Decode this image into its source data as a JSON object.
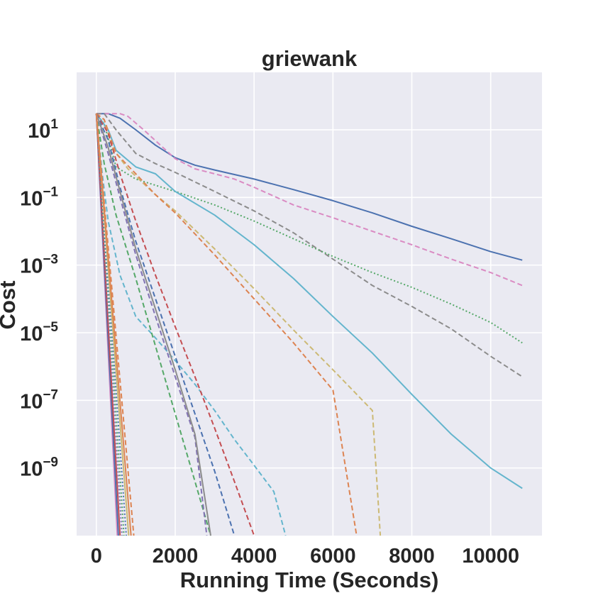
{
  "chart_data": {
    "type": "line",
    "title": "griewank",
    "xlabel": "Running Time (Seconds)",
    "ylabel": "Cost",
    "xlim": [
      -500,
      11300
    ],
    "ylim": [
      1e-11,
      500
    ],
    "yscale": "log",
    "xticks": [
      0,
      2000,
      4000,
      6000,
      8000,
      10000
    ],
    "yticks": [
      {
        "value": 10,
        "base": "10",
        "exp": "1"
      },
      {
        "value": 0.1,
        "base": "10",
        "exp": "−1"
      },
      {
        "value": 0.001,
        "base": "10",
        "exp": "−3"
      },
      {
        "value": 1e-05,
        "base": "10",
        "exp": "−5"
      },
      {
        "value": 1e-07,
        "base": "10",
        "exp": "−7"
      },
      {
        "value": 1e-09,
        "base": "10",
        "exp": "−9"
      }
    ],
    "grid": true,
    "background": "#eaeaf2",
    "series": [
      {
        "color": "#4c72b0",
        "style": "solid",
        "points": [
          [
            0,
            30
          ],
          [
            300,
            30
          ],
          [
            600,
            22
          ],
          [
            1000,
            10
          ],
          [
            1500,
            3.5
          ],
          [
            2000,
            1.5
          ],
          [
            2500,
            0.9
          ],
          [
            3000,
            0.65
          ],
          [
            4000,
            0.35
          ],
          [
            5000,
            0.17
          ],
          [
            6000,
            0.08
          ],
          [
            7000,
            0.035
          ],
          [
            8000,
            0.014
          ],
          [
            9000,
            0.006
          ],
          [
            10000,
            0.0025
          ],
          [
            10800,
            0.0014
          ]
        ]
      },
      {
        "color": "#da8bc3",
        "style": "dashed",
        "points": [
          [
            0,
            30
          ],
          [
            600,
            30
          ],
          [
            800,
            25
          ],
          [
            1200,
            10
          ],
          [
            2000,
            1.4
          ],
          [
            2500,
            0.7
          ],
          [
            3000,
            0.5
          ],
          [
            3500,
            0.35
          ],
          [
            4000,
            0.2
          ],
          [
            5000,
            0.06
          ],
          [
            6000,
            0.025
          ],
          [
            7000,
            0.01
          ],
          [
            8000,
            0.004
          ],
          [
            9000,
            0.0015
          ],
          [
            10000,
            0.0006
          ],
          [
            10800,
            0.00025
          ]
        ]
      },
      {
        "color": "#8c8c8c",
        "style": "dashed",
        "points": [
          [
            0,
            30
          ],
          [
            200,
            30
          ],
          [
            500,
            10
          ],
          [
            1000,
            2
          ],
          [
            1500,
            1
          ],
          [
            2000,
            0.55
          ],
          [
            3000,
            0.15
          ],
          [
            4000,
            0.04
          ],
          [
            5000,
            0.009
          ],
          [
            6000,
            0.0015
          ],
          [
            7000,
            0.00025
          ],
          [
            8000,
            6e-05
          ],
          [
            9000,
            1.3e-05
          ],
          [
            10000,
            2e-06
          ],
          [
            10800,
            5e-07
          ]
        ]
      },
      {
        "color": "#55a868",
        "style": "dotted",
        "points": [
          [
            0,
            30
          ],
          [
            200,
            15
          ],
          [
            500,
            0.8
          ],
          [
            1000,
            0.35
          ],
          [
            2000,
            0.15
          ],
          [
            3000,
            0.06
          ],
          [
            4000,
            0.02
          ],
          [
            5000,
            0.006
          ],
          [
            6000,
            0.0018
          ],
          [
            7000,
            0.0006
          ],
          [
            8000,
            0.00022
          ],
          [
            9000,
            7e-05
          ],
          [
            10000,
            2e-05
          ],
          [
            10800,
            5e-06
          ]
        ]
      },
      {
        "color": "#64b5cd",
        "style": "solid",
        "points": [
          [
            0,
            30
          ],
          [
            300,
            10
          ],
          [
            500,
            2.5
          ],
          [
            1000,
            0.8
          ],
          [
            1500,
            0.5
          ],
          [
            2000,
            0.15
          ],
          [
            3000,
            0.03
          ],
          [
            4000,
            0.004
          ],
          [
            5000,
            0.0004
          ],
          [
            6000,
            3e-05
          ],
          [
            7000,
            2.5e-06
          ],
          [
            8000,
            1.5e-07
          ],
          [
            9000,
            1e-08
          ],
          [
            10000,
            1e-09
          ],
          [
            10800,
            2.5e-10
          ]
        ]
      },
      {
        "color": "#ccb974",
        "style": "dashed",
        "points": [
          [
            0,
            30
          ],
          [
            200,
            20
          ],
          [
            400,
            3
          ],
          [
            800,
            0.7
          ],
          [
            1500,
            0.12
          ],
          [
            2000,
            0.04
          ],
          [
            3000,
            0.003
          ],
          [
            4000,
            0.0002
          ],
          [
            5000,
            1.2e-05
          ],
          [
            6000,
            8e-07
          ],
          [
            7000,
            5e-08
          ],
          [
            7200,
            1e-11
          ]
        ]
      },
      {
        "color": "#dd8452",
        "style": "dashed",
        "points": [
          [
            0,
            30
          ],
          [
            200,
            20
          ],
          [
            500,
            2
          ],
          [
            1000,
            0.5
          ],
          [
            1500,
            0.12
          ],
          [
            2000,
            0.035
          ],
          [
            3000,
            0.002
          ],
          [
            4000,
            0.0001
          ],
          [
            5000,
            5e-06
          ],
          [
            6000,
            2e-07
          ],
          [
            6600,
            1e-11
          ]
        ]
      },
      {
        "color": "#64b5cd",
        "style": "dashed",
        "points": [
          [
            0,
            30
          ],
          [
            150,
            0.5
          ],
          [
            300,
            0.02
          ],
          [
            600,
            0.0005
          ],
          [
            1000,
            3e-05
          ],
          [
            1500,
            7e-06
          ],
          [
            2000,
            1.5e-06
          ],
          [
            2500,
            3e-07
          ],
          [
            3000,
            5e-08
          ],
          [
            3500,
            7e-09
          ],
          [
            4000,
            1.2e-09
          ],
          [
            4500,
            2e-10
          ],
          [
            4800,
            1e-11
          ]
        ]
      },
      {
        "color": "#c44e52",
        "style": "dashed",
        "points": [
          [
            0,
            30
          ],
          [
            300,
            8
          ],
          [
            600,
            0.5
          ],
          [
            1000,
            0.02
          ],
          [
            1500,
            0.0005
          ],
          [
            2000,
            1.5e-05
          ],
          [
            2500,
            5e-07
          ],
          [
            3000,
            1.5e-08
          ],
          [
            3500,
            4e-10
          ],
          [
            4000,
            1e-11
          ]
        ]
      },
      {
        "color": "#4c72b0",
        "style": "dashed",
        "points": [
          [
            0,
            30
          ],
          [
            300,
            5
          ],
          [
            600,
            0.2
          ],
          [
            1000,
            0.005
          ],
          [
            1500,
            0.0001
          ],
          [
            2000,
            2e-06
          ],
          [
            2500,
            4e-08
          ],
          [
            3000,
            8e-10
          ],
          [
            3500,
            1e-11
          ]
        ]
      },
      {
        "color": "#55a868",
        "style": "dashed",
        "points": [
          [
            0,
            30
          ],
          [
            200,
            1
          ],
          [
            500,
            0.03
          ],
          [
            1000,
            0.0004
          ],
          [
            1500,
            4e-06
          ],
          [
            2000,
            4e-08
          ],
          [
            2500,
            4e-10
          ],
          [
            2900,
            1e-11
          ]
        ]
      },
      {
        "color": "#8172b3",
        "style": "dashed",
        "points": [
          [
            0,
            30
          ],
          [
            300,
            2
          ],
          [
            600,
            0.1
          ],
          [
            1000,
            0.002
          ],
          [
            1500,
            3e-05
          ],
          [
            2000,
            5e-07
          ],
          [
            2500,
            8e-09
          ],
          [
            2800,
            1e-11
          ]
        ]
      },
      {
        "color": "#8c8c8c",
        "style": "solid",
        "points": [
          [
            0,
            30
          ],
          [
            300,
            3
          ],
          [
            600,
            0.15
          ],
          [
            1000,
            0.003
          ],
          [
            1500,
            5e-05
          ],
          [
            2000,
            8e-07
          ],
          [
            2500,
            1e-08
          ],
          [
            2900,
            1e-11
          ]
        ]
      },
      {
        "color": "#da8bc3",
        "style": "solid",
        "points": [
          [
            0,
            30
          ],
          [
            530,
            1e-11
          ]
        ]
      },
      {
        "color": "#4c72b0",
        "style": "solid",
        "points": [
          [
            0,
            30
          ],
          [
            560,
            1e-11
          ]
        ]
      },
      {
        "color": "#c44e52",
        "style": "solid",
        "points": [
          [
            0,
            30
          ],
          [
            600,
            1e-11
          ]
        ]
      },
      {
        "color": "#8172b3",
        "style": "dotted",
        "points": [
          [
            0,
            30
          ],
          [
            650,
            1e-11
          ]
        ]
      },
      {
        "color": "#55a868",
        "style": "dotted",
        "points": [
          [
            0,
            30
          ],
          [
            700,
            1e-11
          ]
        ]
      },
      {
        "color": "#4c72b0",
        "style": "dotted",
        "points": [
          [
            0,
            30
          ],
          [
            760,
            1e-11
          ]
        ]
      },
      {
        "color": "#ccb974",
        "style": "solid",
        "points": [
          [
            0,
            30
          ],
          [
            820,
            1e-11
          ]
        ]
      },
      {
        "color": "#dd8452",
        "style": "solid",
        "points": [
          [
            0,
            30
          ],
          [
            880,
            1e-11
          ]
        ]
      },
      {
        "color": "#dd8452",
        "style": "dashed",
        "points": [
          [
            0,
            30
          ],
          [
            950,
            1e-11
          ]
        ]
      }
    ]
  }
}
